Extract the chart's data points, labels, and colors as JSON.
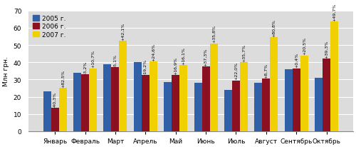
{
  "months": [
    "Январь",
    "Февраль",
    "Март",
    "Апрель",
    "Май",
    "Июнь",
    "Июль",
    "Август",
    "Сентябрь",
    "Октябрь"
  ],
  "values_2005": [
    23,
    34,
    39,
    40,
    28.5,
    28,
    24,
    28,
    36,
    31
  ],
  "values_2006": [
    13.5,
    33,
    37,
    32.5,
    32.5,
    37.5,
    29.5,
    30.5,
    36.5,
    42
  ],
  "values_2007": [
    25,
    36.5,
    52.5,
    40.5,
    38.5,
    51,
    40,
    54.5,
    44,
    63.5
  ],
  "labels_on_2006": [
    "-40,3%",
    "-3,2%",
    "-5,1%",
    "-19,2%",
    "+16,9%",
    "+37,3%",
    "+22,0%",
    "+8,7%",
    "+0,4%",
    "+39,3%"
  ],
  "labels_on_2007": [
    "+82,5%",
    "+10,7%",
    "+42,1%",
    "+24,6%",
    "+16,1%",
    "+35,8%",
    "+35,7%",
    "+80,8%",
    "+20,5%",
    "+49,7%"
  ],
  "color_2005": "#3060A8",
  "color_2006": "#8B1020",
  "color_2007": "#F0D000",
  "ylabel": "Млн грн.",
  "ylim": [
    0,
    70
  ],
  "yticks": [
    0,
    10,
    20,
    30,
    40,
    50,
    60,
    70
  ],
  "legend_labels": [
    "2005 г.",
    "2006 г.",
    "2007 г."
  ],
  "bar_width": 0.26,
  "label_fontsize": 4.5,
  "axis_fontsize": 6.5,
  "legend_fontsize": 6.5,
  "bg_color": "#DCDCDC"
}
